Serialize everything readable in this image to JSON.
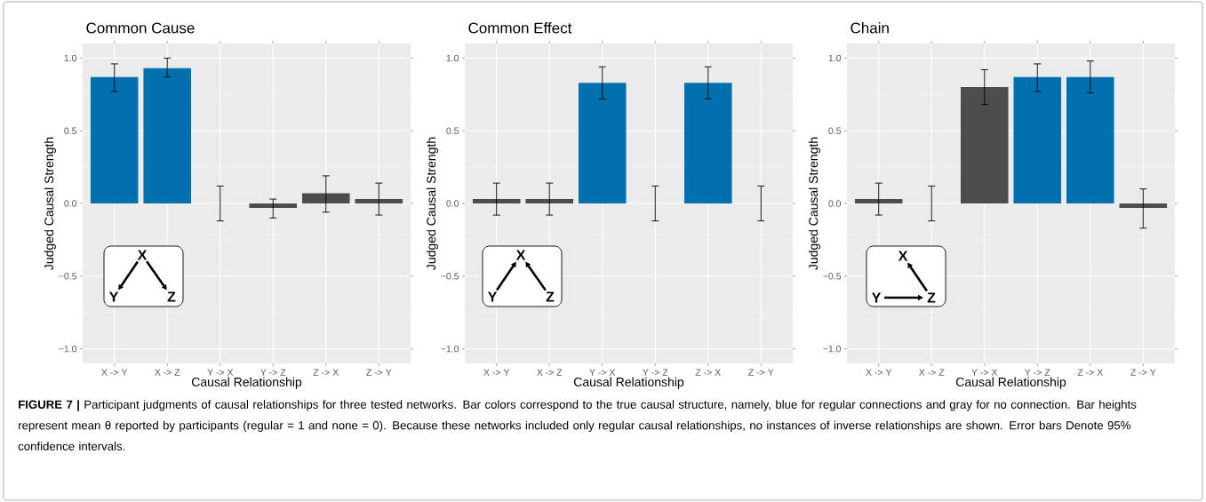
{
  "chart_data": [
    {
      "type": "bar",
      "title": "Common Cause",
      "xlabel": "Causal Relationship",
      "ylabel": "Judged Causal Strength",
      "categories": [
        "X -> Y",
        "X -> Z",
        "Y -> X",
        "Y -> Z",
        "Z -> X",
        "Z -> Y"
      ],
      "values": [
        0.87,
        0.93,
        0,
        -0.03,
        0.07,
        0.03
      ],
      "colors": [
        "#0071ad",
        "#0071ad",
        "#4d4d4d",
        "#4d4d4d",
        "#4d4d4d",
        "#4d4d4d"
      ],
      "errors": [
        [
          0.77,
          0.96
        ],
        [
          0.87,
          1.0
        ],
        [
          -0.12,
          0.12
        ],
        [
          -0.1,
          0.03
        ],
        [
          -0.06,
          0.19
        ],
        [
          -0.08,
          0.14
        ]
      ],
      "ylim": [
        -1.1,
        1.1
      ],
      "yticks": [
        {
          "value": -1,
          "label": "−1.0"
        },
        {
          "value": -0.5,
          "label": "−0.5"
        },
        {
          "value": 0,
          "label": "0.0"
        },
        {
          "value": 0.5,
          "label": "0.5"
        },
        {
          "value": 1,
          "label": "1.0"
        }
      ],
      "grid": true,
      "annotations": [
        "X",
        "Y",
        "Z"
      ]
    },
    {
      "type": "bar",
      "title": "Common Effect",
      "xlabel": "Causal Relationship",
      "ylabel": "Judged Causal Strength",
      "categories": [
        "X -> Y",
        "X -> Z",
        "Y -> X",
        "Y -> Z",
        "Z -> X",
        "Z -> Y"
      ],
      "values": [
        0.03,
        0.03,
        0.83,
        0,
        0.83,
        0
      ],
      "colors": [
        "#4d4d4d",
        "#4d4d4d",
        "#0071ad",
        "#4d4d4d",
        "#0071ad",
        "#4d4d4d"
      ],
      "errors": [
        [
          -0.08,
          0.14
        ],
        [
          -0.08,
          0.14
        ],
        [
          0.72,
          0.94
        ],
        [
          -0.12,
          0.12
        ],
        [
          0.72,
          0.94
        ],
        [
          -0.12,
          0.12
        ]
      ],
      "ylim": [
        -1.1,
        1.1
      ],
      "yticks": [
        {
          "value": -1,
          "label": "−1.0"
        },
        {
          "value": -0.5,
          "label": "−0.5"
        },
        {
          "value": 0,
          "label": "0.0"
        },
        {
          "value": 0.5,
          "label": "0.5"
        },
        {
          "value": 1,
          "label": "1.0"
        }
      ],
      "grid": true,
      "annotations": [
        "X",
        "Y",
        "Z"
      ]
    },
    {
      "type": "bar",
      "title": "Chain",
      "xlabel": "Causal Relationship",
      "ylabel": "Judged Causal Strength",
      "categories": [
        "X -> Y",
        "X -> Z",
        "Y -> X",
        "Y -> Z",
        "Z -> X",
        "Z -> Y"
      ],
      "values": [
        0.03,
        0,
        0.8,
        0.87,
        0.87,
        -0.03
      ],
      "colors": [
        "#4d4d4d",
        "#4d4d4d",
        "#4d4d4d",
        "#0071ad",
        "#0071ad",
        "#4d4d4d"
      ],
      "errors": [
        [
          -0.08,
          0.14
        ],
        [
          -0.12,
          0.12
        ],
        [
          0.68,
          0.92
        ],
        [
          0.77,
          0.96
        ],
        [
          0.76,
          0.98
        ],
        [
          -0.17,
          0.1
        ]
      ],
      "ylim": [
        -1.1,
        1.1
      ],
      "yticks": [
        {
          "value": -1,
          "label": "−1.0"
        },
        {
          "value": -0.5,
          "label": "−0.5"
        },
        {
          "value": 0,
          "label": "0.0"
        },
        {
          "value": 0.5,
          "label": "0.5"
        },
        {
          "value": 1,
          "label": "1.0"
        }
      ],
      "grid": true,
      "annotations": [
        "X",
        "Y",
        "Z",
        "**FIGURE 7 |** Participant judgments of causal relationships for three tested networks. Bar colors correspond to the true causal structure, namely, blue for regular connections and gray for no connection. Bar heights represent mean θ reported by participants (regular = 1 and none = 0). Because these networks included only regular causal relationships, no instances of inverse relationships are shown. Error bars Denote 95% confidence intervals."
      ]
    }
  ]
}
